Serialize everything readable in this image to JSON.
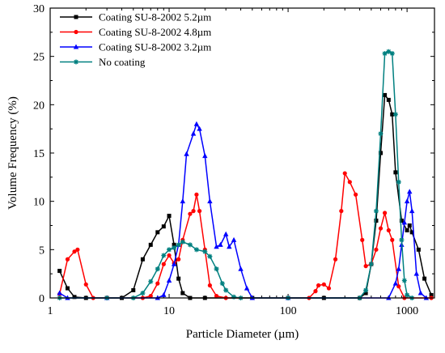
{
  "chart_data": {
    "type": "line",
    "x_scale": "log",
    "xlabel": "Particle Diameter (µm)",
    "ylabel": "Volume Frequency (%)",
    "xlim": [
      1,
      1700
    ],
    "ylim": [
      0,
      30
    ],
    "x_ticks": [
      1,
      10,
      100,
      1000
    ],
    "x_tick_labels": [
      "1",
      "10",
      "100",
      "1000"
    ],
    "y_ticks": [
      0,
      5,
      10,
      15,
      20,
      25,
      30
    ],
    "y_tick_labels": [
      "0",
      "5",
      "10",
      "15",
      "20",
      "25",
      "30"
    ],
    "legend_position": "top-left",
    "series": [
      {
        "name": "Coating SU-8-2002 5.2µm",
        "color": "#000000",
        "marker": "square",
        "points": [
          [
            1.2,
            2.8
          ],
          [
            1.4,
            1.0
          ],
          [
            1.6,
            0.1
          ],
          [
            2.0,
            0.0
          ],
          [
            3.0,
            0.0
          ],
          [
            4.0,
            0.0
          ],
          [
            5.0,
            0.8
          ],
          [
            6.0,
            4.0
          ],
          [
            7.0,
            5.5
          ],
          [
            8.0,
            6.8
          ],
          [
            9.0,
            7.4
          ],
          [
            10.0,
            8.5
          ],
          [
            11.0,
            5.5
          ],
          [
            12.0,
            2.0
          ],
          [
            13.0,
            0.5
          ],
          [
            15.0,
            0.0
          ],
          [
            20.0,
            0.0
          ],
          [
            50.0,
            0.0
          ],
          [
            100.0,
            0.0
          ],
          [
            200.0,
            0.0
          ],
          [
            400.0,
            0.0
          ],
          [
            450.0,
            0.5
          ],
          [
            500.0,
            3.5
          ],
          [
            550.0,
            8.0
          ],
          [
            600.0,
            15.0
          ],
          [
            650.0,
            21.0
          ],
          [
            700.0,
            20.5
          ],
          [
            750.0,
            19.0
          ],
          [
            800.0,
            13.0
          ],
          [
            900.0,
            8.0
          ],
          [
            1000.0,
            7.0
          ],
          [
            1050.0,
            7.5
          ],
          [
            1100.0,
            6.8
          ],
          [
            1250.0,
            5.0
          ],
          [
            1400.0,
            2.0
          ],
          [
            1600.0,
            0.3
          ]
        ]
      },
      {
        "name": "Coating SU-8-2002 4.8µm",
        "color": "#ff0000",
        "marker": "circle",
        "points": [
          [
            1.2,
            0.4
          ],
          [
            1.4,
            4.0
          ],
          [
            1.6,
            4.8
          ],
          [
            1.7,
            5.0
          ],
          [
            2.0,
            1.4
          ],
          [
            2.3,
            0.0
          ],
          [
            3.0,
            0.0
          ],
          [
            6.0,
            0.0
          ],
          [
            7.0,
            0.2
          ],
          [
            8.0,
            1.5
          ],
          [
            9.0,
            3.5
          ],
          [
            10.0,
            4.4
          ],
          [
            11.0,
            3.6
          ],
          [
            12.0,
            4.0
          ],
          [
            13.0,
            6.0
          ],
          [
            15.0,
            8.7
          ],
          [
            16.0,
            9.0
          ],
          [
            17.0,
            10.7
          ],
          [
            18.0,
            9.0
          ],
          [
            20.0,
            5.0
          ],
          [
            22.0,
            1.3
          ],
          [
            25.0,
            0.2
          ],
          [
            30.0,
            0.0
          ],
          [
            100.0,
            0.0
          ],
          [
            150.0,
            0.0
          ],
          [
            170.0,
            0.7
          ],
          [
            180.0,
            1.3
          ],
          [
            200.0,
            1.4
          ],
          [
            220.0,
            1.0
          ],
          [
            250.0,
            4.0
          ],
          [
            280.0,
            9.0
          ],
          [
            300.0,
            12.9
          ],
          [
            330.0,
            12.0
          ],
          [
            370.0,
            10.7
          ],
          [
            420.0,
            6.0
          ],
          [
            450.0,
            3.3
          ],
          [
            500.0,
            3.5
          ],
          [
            550.0,
            5.0
          ],
          [
            600.0,
            7.2
          ],
          [
            650.0,
            8.8
          ],
          [
            700.0,
            7.0
          ],
          [
            750.0,
            6.0
          ],
          [
            850.0,
            1.2
          ],
          [
            950.0,
            0.0
          ],
          [
            1600.0,
            0.0
          ]
        ]
      },
      {
        "name": "Coating SU-8-2002 3.2µm",
        "color": "#0000ff",
        "marker": "triangle",
        "points": [
          [
            1.2,
            0.5
          ],
          [
            1.4,
            0.0
          ],
          [
            3.0,
            0.0
          ],
          [
            8.0,
            0.0
          ],
          [
            9.0,
            0.3
          ],
          [
            10.0,
            1.8
          ],
          [
            11.0,
            3.5
          ],
          [
            12.0,
            5.5
          ],
          [
            13.0,
            10.0
          ],
          [
            14.0,
            14.9
          ],
          [
            16.0,
            17.0
          ],
          [
            17.0,
            18.0
          ],
          [
            18.0,
            17.5
          ],
          [
            20.0,
            14.7
          ],
          [
            22.0,
            10.0
          ],
          [
            25.0,
            5.3
          ],
          [
            27.0,
            5.5
          ],
          [
            30.0,
            6.6
          ],
          [
            32.0,
            5.3
          ],
          [
            35.0,
            6.0
          ],
          [
            40.0,
            3.0
          ],
          [
            45.0,
            1.0
          ],
          [
            50.0,
            0.0
          ],
          [
            100.0,
            0.0
          ],
          [
            700.0,
            0.0
          ],
          [
            800.0,
            1.5
          ],
          [
            850.0,
            3.0
          ],
          [
            900.0,
            5.5
          ],
          [
            950.0,
            7.8
          ],
          [
            1000.0,
            10.0
          ],
          [
            1050.0,
            11.0
          ],
          [
            1100.0,
            9.0
          ],
          [
            1200.0,
            2.5
          ],
          [
            1300.0,
            0.5
          ],
          [
            1450.0,
            0.0
          ]
        ]
      },
      {
        "name": "No coating",
        "color": "#008080",
        "marker": "star",
        "points": [
          [
            1.2,
            0.0
          ],
          [
            3.0,
            0.0
          ],
          [
            5.0,
            0.0
          ],
          [
            6.0,
            0.5
          ],
          [
            7.0,
            1.7
          ],
          [
            8.0,
            3.0
          ],
          [
            9.0,
            4.4
          ],
          [
            10.0,
            5.0
          ],
          [
            11.0,
            5.2
          ],
          [
            12.0,
            5.5
          ],
          [
            13.0,
            5.8
          ],
          [
            15.0,
            5.5
          ],
          [
            17.0,
            5.0
          ],
          [
            20.0,
            4.8
          ],
          [
            22.0,
            4.3
          ],
          [
            25.0,
            3.0
          ],
          [
            28.0,
            1.5
          ],
          [
            30.0,
            0.8
          ],
          [
            35.0,
            0.1
          ],
          [
            40.0,
            0.0
          ],
          [
            100.0,
            0.0
          ],
          [
            400.0,
            0.0
          ],
          [
            450.0,
            0.8
          ],
          [
            500.0,
            3.5
          ],
          [
            550.0,
            9.0
          ],
          [
            600.0,
            17.0
          ],
          [
            650.0,
            25.3
          ],
          [
            700.0,
            25.5
          ],
          [
            750.0,
            25.3
          ],
          [
            800.0,
            19.0
          ],
          [
            850.0,
            12.0
          ],
          [
            900.0,
            6.0
          ],
          [
            950.0,
            1.8
          ],
          [
            1000.0,
            0.3
          ],
          [
            1100.0,
            0.0
          ]
        ]
      }
    ]
  }
}
